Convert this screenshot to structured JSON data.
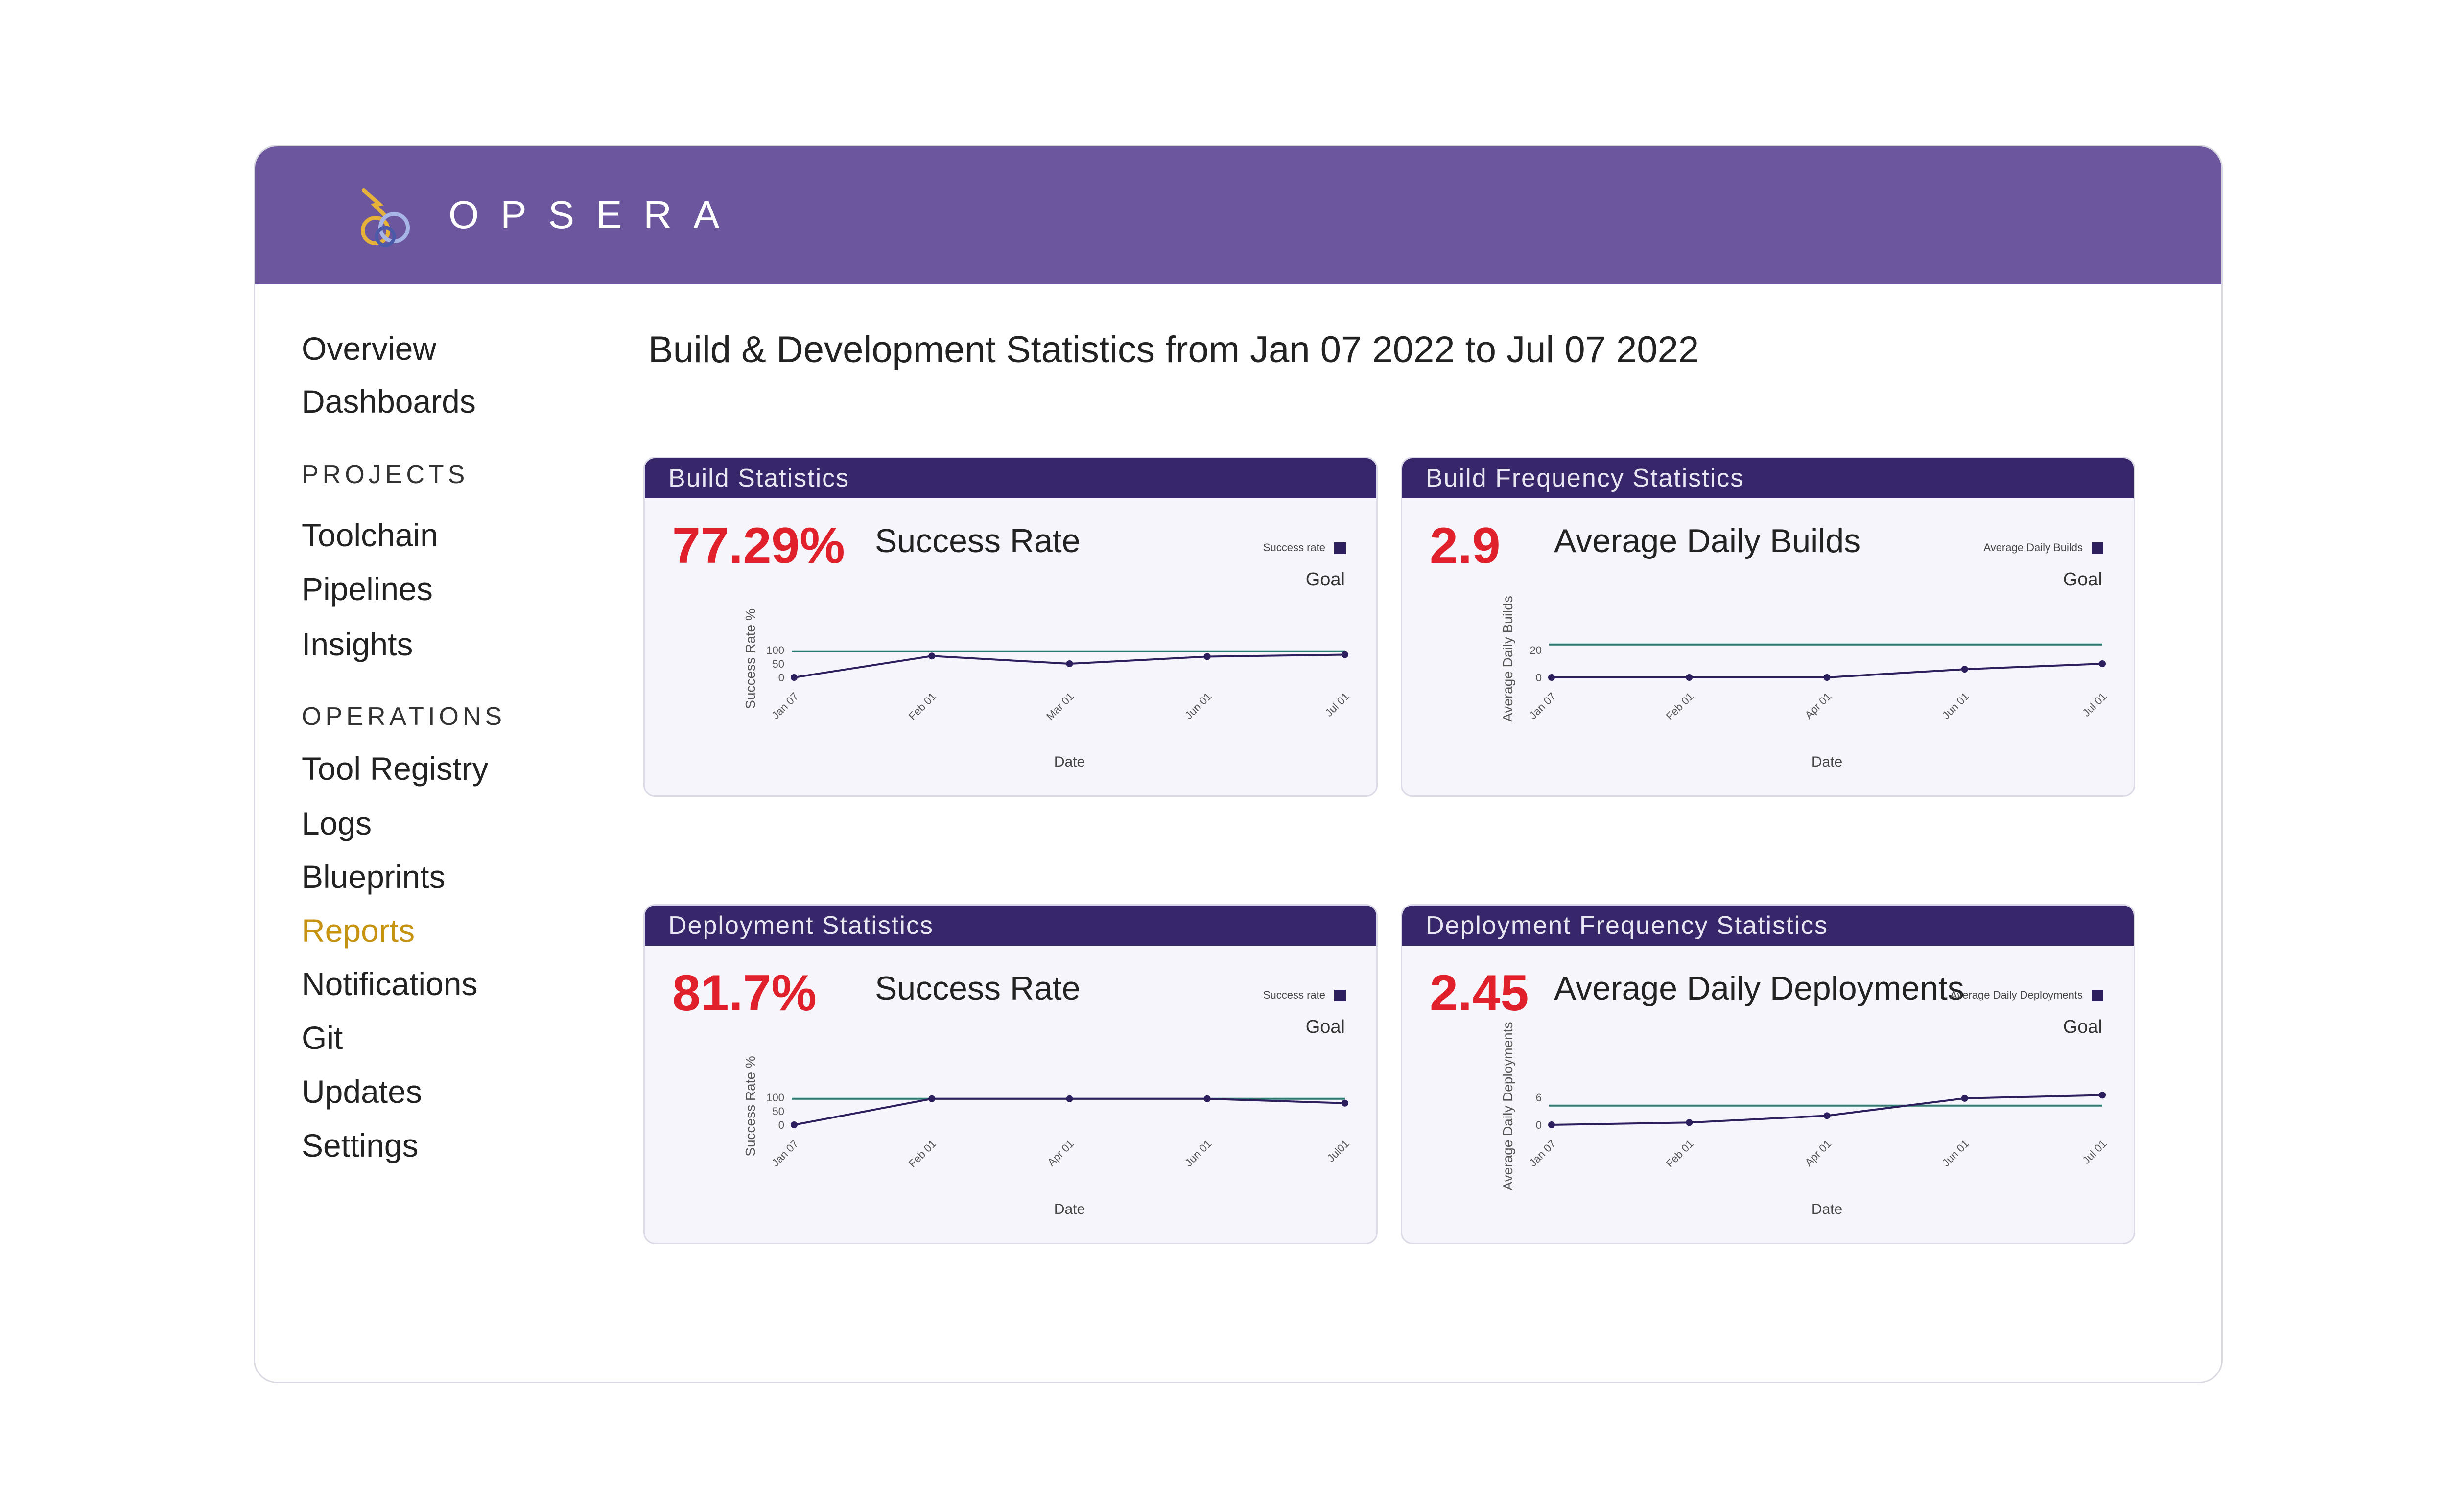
{
  "app": {
    "brand": "OPSERA"
  },
  "colors": {
    "header": "#6c579e",
    "card_header": "#38266a",
    "value_red": "#e0202a",
    "active_nav": "#c79411",
    "series": "#2d1f5e",
    "goal": "#2f7a70"
  },
  "sidebar": {
    "top": [
      {
        "label": "Overview"
      },
      {
        "label": "Dashboards"
      }
    ],
    "projects_heading": "PROJECTS",
    "projects": [
      {
        "label": "Toolchain"
      },
      {
        "label": "Pipelines"
      },
      {
        "label": "Insights"
      }
    ],
    "operations_heading": "OPERATIONS",
    "operations": [
      {
        "label": "Tool Registry"
      },
      {
        "label": "Logs"
      },
      {
        "label": "Blueprints"
      },
      {
        "label": "Reports",
        "active": true
      },
      {
        "label": "Notifications"
      },
      {
        "label": "Git"
      },
      {
        "label": "Updates"
      },
      {
        "label": "Settings"
      }
    ]
  },
  "main": {
    "title": "Build & Development Statistics from Jan 07 2022 to Jul 07 2022",
    "cards": [
      {
        "header": "Build Statistics",
        "value": "77.29%",
        "label": "Success Rate"
      },
      {
        "header": "Build Frequency Statistics",
        "value": "2.9",
        "label": "Average Daily Builds"
      },
      {
        "header": "Deployment Statistics",
        "value": "81.7%",
        "label": "Success Rate"
      },
      {
        "header": "Deployment Frequency Statistics",
        "value": "2.45",
        "label": "Average Daily Deployments"
      }
    ]
  },
  "chart_data": [
    {
      "type": "line",
      "x": [
        "Jan 07",
        "Feb 01",
        "Mar 01",
        "Jun 01",
        "Jul 01"
      ],
      "series": [
        {
          "name": "Success rate",
          "values": [
            0,
            78,
            50,
            76,
            83
          ]
        }
      ],
      "goal": {
        "label": "Goal",
        "value": 95
      },
      "yticks": [
        0,
        50,
        100
      ],
      "ylim": [
        0,
        100
      ],
      "xlabel": "Date",
      "ylabel": "Success Rate %",
      "legend": "top-right"
    },
    {
      "type": "line",
      "x": [
        "Jan 07",
        "Feb 01",
        "Apr 01",
        "Jun 01",
        "Jul 01"
      ],
      "series": [
        {
          "name": "Average Daily Builds",
          "values": [
            0,
            0,
            0,
            6,
            10
          ]
        }
      ],
      "goal": {
        "label": "Goal",
        "value": 24
      },
      "yticks": [
        0,
        20
      ],
      "ylim": [
        0,
        20
      ],
      "xlabel": "Date",
      "ylabel": "Average Daily Builds",
      "legend": "top-right"
    },
    {
      "type": "line",
      "x": [
        "Jan 07",
        "Feb 01",
        "Apr 01",
        "Jun 01",
        "Jul01"
      ],
      "series": [
        {
          "name": "Success rate",
          "values": [
            0,
            95,
            95,
            95,
            79
          ]
        }
      ],
      "goal": {
        "label": "Goal",
        "value": 95
      },
      "yticks": [
        0,
        50,
        100
      ],
      "ylim": [
        0,
        100
      ],
      "xlabel": "Date",
      "ylabel": "Success Rate %",
      "legend": "top-right"
    },
    {
      "type": "line",
      "x": [
        "Jan 07",
        "Feb 01",
        "Apr 01",
        "Jun 01",
        "Jul 01"
      ],
      "series": [
        {
          "name": "Average Daily Deployments",
          "values": [
            0,
            0.5,
            2,
            5.8,
            6.5
          ]
        }
      ],
      "goal": {
        "label": "Goal",
        "value": 4.2
      },
      "yticks": [
        0,
        6
      ],
      "ylim": [
        0,
        6
      ],
      "xlabel": "Date",
      "ylabel": "Average Daily Deployments",
      "legend": "top-right"
    }
  ]
}
